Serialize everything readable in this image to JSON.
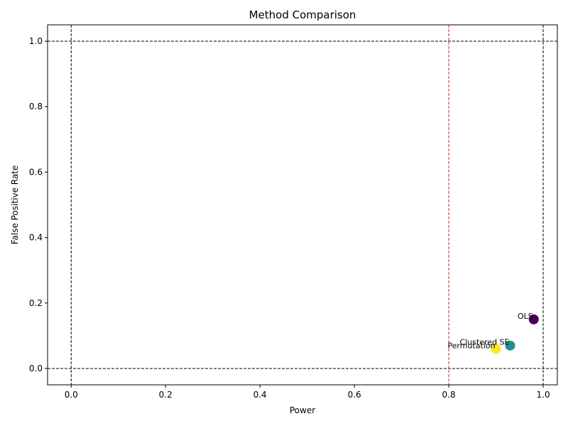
{
  "chart_data": {
    "type": "scatter",
    "title": "Method Comparison",
    "xlabel": "Power",
    "ylabel": "False Positive Rate",
    "xlim": [
      -0.05,
      1.03
    ],
    "ylim": [
      -0.05,
      1.05
    ],
    "xticks": [
      0.0,
      0.2,
      0.4,
      0.6,
      0.8,
      1.0
    ],
    "xtick_labels": [
      "0.0",
      "0.2",
      "0.4",
      "0.6",
      "0.8",
      "1.0"
    ],
    "yticks": [
      0.0,
      0.2,
      0.4,
      0.6,
      0.8,
      1.0
    ],
    "ytick_labels": [
      "0.0",
      "0.2",
      "0.4",
      "0.6",
      "0.8",
      "1.0"
    ],
    "grid": false,
    "points": [
      {
        "label": "OLS",
        "x": 0.98,
        "y": 0.15,
        "color": "#440154"
      },
      {
        "label": "Clustered SE",
        "x": 0.93,
        "y": 0.07,
        "color": "#21918c"
      },
      {
        "label": "Permutation",
        "x": 0.9,
        "y": 0.06,
        "color": "#fde725"
      }
    ],
    "reference_lines": [
      {
        "orientation": "vertical",
        "value": 0.0,
        "color": "#000000",
        "style": "dashed"
      },
      {
        "orientation": "vertical",
        "value": 1.0,
        "color": "#000000",
        "style": "dashed"
      },
      {
        "orientation": "horizontal",
        "value": 0.0,
        "color": "#000000",
        "style": "dashed"
      },
      {
        "orientation": "horizontal",
        "value": 1.0,
        "color": "#000000",
        "style": "dashed"
      },
      {
        "orientation": "vertical",
        "value": 0.8,
        "color": "#d62728",
        "style": "dashed"
      }
    ]
  }
}
